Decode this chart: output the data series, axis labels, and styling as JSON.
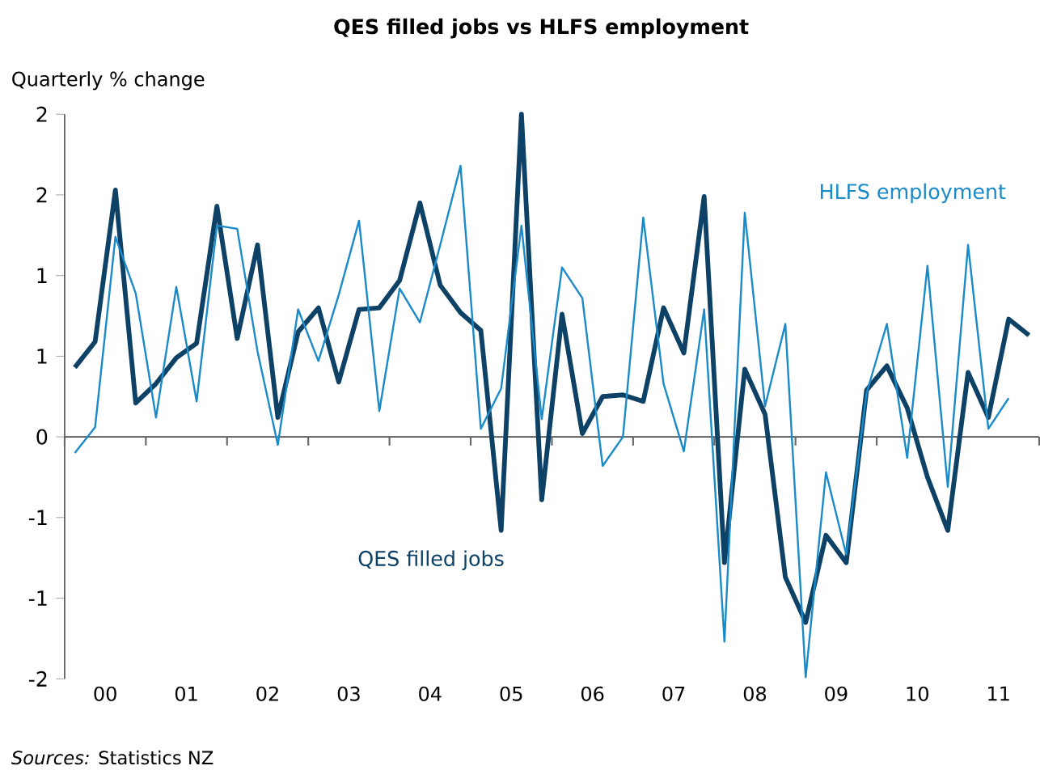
{
  "chart_data": {
    "type": "line",
    "title": "QES filled jobs vs HLFS employment",
    "ylabel": "Quarterly % change",
    "x": [
      1999.625,
      1999.875,
      2000.125,
      2000.375,
      2000.625,
      2000.875,
      2001.125,
      2001.375,
      2001.625,
      2001.875,
      2002.125,
      2002.375,
      2002.625,
      2002.875,
      2003.125,
      2003.375,
      2003.625,
      2003.875,
      2004.125,
      2004.375,
      2004.625,
      2004.875,
      2005.125,
      2005.375,
      2005.625,
      2005.875,
      2006.125,
      2006.375,
      2006.625,
      2006.875,
      2007.125,
      2007.375,
      2007.625,
      2007.875,
      2008.125,
      2008.375,
      2008.625,
      2008.875,
      2009.125,
      2009.375,
      2009.625,
      2009.875,
      2010.125,
      2010.375,
      2010.625,
      2010.875,
      2011.125,
      2011.375
    ],
    "series": [
      {
        "name": "QES filled jobs",
        "color": "#0d4266",
        "values": [
          0.43,
          0.59,
          1.53,
          0.21,
          0.33,
          0.49,
          0.58,
          1.43,
          0.61,
          1.19,
          0.12,
          0.65,
          0.8,
          0.34,
          0.79,
          0.8,
          0.97,
          1.45,
          0.94,
          0.77,
          0.66,
          -0.58,
          2.0,
          -0.39,
          0.76,
          0.02,
          0.25,
          0.26,
          0.22,
          0.8,
          0.52,
          1.49,
          -0.78,
          0.42,
          0.14,
          -0.87,
          -1.15,
          -0.61,
          -0.78,
          0.29,
          0.44,
          0.18,
          -0.25,
          -0.58,
          0.4,
          0.12,
          0.73,
          0.63
        ]
      },
      {
        "name": "HLFS employment",
        "color": "#1a8ac8",
        "values": [
          -0.1,
          0.06,
          1.24,
          0.89,
          0.12,
          0.93,
          0.22,
          1.31,
          1.29,
          0.53,
          -0.05,
          0.79,
          0.47,
          0.88,
          1.34,
          0.16,
          0.92,
          0.71,
          1.19,
          1.68,
          0.05,
          0.3,
          1.31,
          0.11,
          1.05,
          0.86,
          -0.18,
          0.0,
          1.36,
          0.33,
          -0.09,
          0.79,
          -1.27,
          1.39,
          0.19,
          0.7,
          -1.49,
          -0.22,
          -0.73,
          0.27,
          0.7,
          -0.13,
          1.06,
          -0.31,
          1.19,
          0.05,
          0.24,
          null
        ]
      }
    ],
    "xlim": [
      1999.5,
      2011.5
    ],
    "xticks": [
      {
        "value": 1999.5,
        "label": null
      },
      {
        "value": 2000.5,
        "label": null
      },
      {
        "value": 2001.5,
        "label": null
      },
      {
        "value": 2002.5,
        "label": null
      },
      {
        "value": 2003.5,
        "label": null
      },
      {
        "value": 2004.5,
        "label": null
      },
      {
        "value": 2005.5,
        "label": null
      },
      {
        "value": 2006.5,
        "label": null
      },
      {
        "value": 2007.5,
        "label": null
      },
      {
        "value": 2008.5,
        "label": null
      },
      {
        "value": 2009.5,
        "label": null
      },
      {
        "value": 2010.5,
        "label": null
      },
      {
        "value": 2011.5,
        "label": null
      },
      {
        "value": 2000,
        "label": "00"
      },
      {
        "value": 2001,
        "label": "01"
      },
      {
        "value": 2002,
        "label": "02"
      },
      {
        "value": 2003,
        "label": "03"
      },
      {
        "value": 2004,
        "label": "04"
      },
      {
        "value": 2005,
        "label": "05"
      },
      {
        "value": 2006,
        "label": "06"
      },
      {
        "value": 2007,
        "label": "07"
      },
      {
        "value": 2008,
        "label": "08"
      },
      {
        "value": 2009,
        "label": "09"
      },
      {
        "value": 2010,
        "label": "10"
      },
      {
        "value": 2011,
        "label": "11"
      }
    ],
    "ylim": [
      -1.5,
      2
    ],
    "yticks": [
      {
        "value": -1.5,
        "label": "-2"
      },
      {
        "value": -1,
        "label": "-1"
      },
      {
        "value": -0.5,
        "label": "-1"
      },
      {
        "value": 0,
        "label": "0"
      },
      {
        "value": 0.5,
        "label": "1"
      },
      {
        "value": 1,
        "label": "1"
      },
      {
        "value": 1.5,
        "label": "2"
      },
      {
        "value": 2,
        "label": "2"
      }
    ],
    "legend": false,
    "annotations": [
      "*Sources:* Statistics NZ"
    ]
  }
}
